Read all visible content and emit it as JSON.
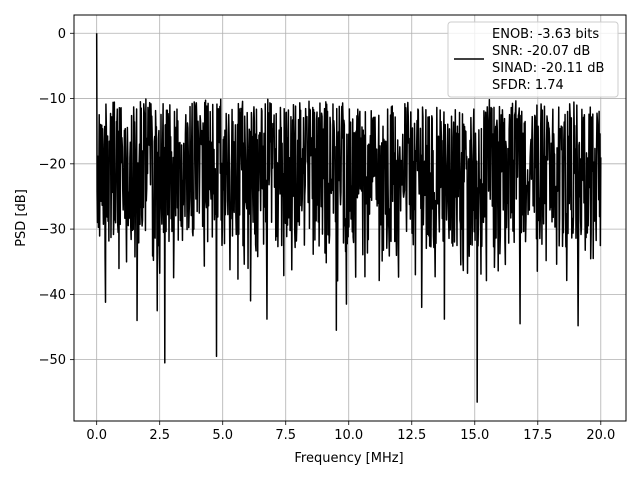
{
  "chart_data": {
    "type": "line",
    "title": "",
    "xlabel": "Frequency [MHz]",
    "ylabel": "PSD [dB]",
    "xlim": [
      -0.9,
      21.0
    ],
    "ylim": [
      -59.4,
      2.8
    ],
    "xticks": [
      0.0,
      2.5,
      5.0,
      7.5,
      10.0,
      12.5,
      15.0,
      17.5,
      20.0
    ],
    "xtick_labels": [
      "0.0",
      "2.5",
      "5.0",
      "7.5",
      "10.0",
      "12.5",
      "15.0",
      "17.5",
      "20.0"
    ],
    "yticks": [
      0,
      -10,
      -20,
      -30,
      -40,
      -50
    ],
    "ytick_labels": [
      "0",
      "−10",
      "−20",
      "−30",
      "−40",
      "−50"
    ],
    "grid": true,
    "legend_position": "top-right",
    "series": [
      {
        "name": "ENOB: -3.63 bits\nSNR: -20.07 dB\nSINAD: -20.11 dB\nSFDR: 1.74",
        "color": "#000000",
        "line_width": 1.5,
        "x_range": [
          0.0,
          20.0
        ],
        "n_points": 1200,
        "noise_floor_db": -20.5,
        "noise_upper_envelope_db": -10.0,
        "noise_lower_envelope_db": -33.0,
        "peaks": [
          {
            "x": 0.0,
            "y": 0.0
          }
        ],
        "notable_dips": [
          {
            "x": 0.35,
            "y": -41.2
          },
          {
            "x": 1.6,
            "y": -44.0
          },
          {
            "x": 2.4,
            "y": -42.5
          },
          {
            "x": 2.7,
            "y": -50.5
          },
          {
            "x": 4.75,
            "y": -49.5
          },
          {
            "x": 6.1,
            "y": -41.0
          },
          {
            "x": 6.75,
            "y": -43.8
          },
          {
            "x": 9.5,
            "y": -45.5
          },
          {
            "x": 9.9,
            "y": -41.5
          },
          {
            "x": 12.9,
            "y": -42.0
          },
          {
            "x": 13.8,
            "y": -43.8
          },
          {
            "x": 15.1,
            "y": -56.5
          },
          {
            "x": 16.8,
            "y": -44.5
          },
          {
            "x": 19.1,
            "y": -44.8
          }
        ]
      }
    ]
  }
}
